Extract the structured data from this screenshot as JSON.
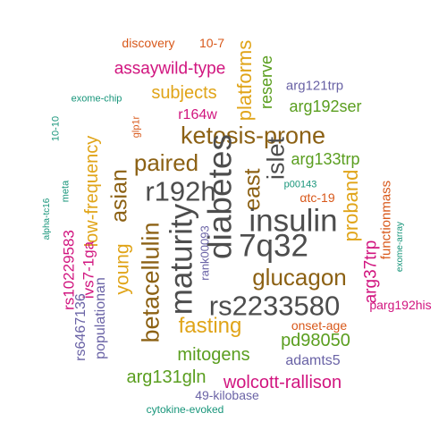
{
  "colors": {
    "gray": "#4d4d4d",
    "brown": "#8c6114",
    "gold": "#e0a418",
    "green": "#5a9e1f",
    "magenta": "#d1157f",
    "purple": "#6a63a6",
    "orange": "#d8581a",
    "teal": "#17957a"
  },
  "words": [
    {
      "text": "discovery",
      "color": "orange"
    },
    {
      "text": "10-7",
      "color": "orange"
    },
    {
      "text": "assaywild-type",
      "color": "magenta"
    },
    {
      "text": "exome-chip",
      "color": "teal"
    },
    {
      "text": "subjects",
      "color": "gold"
    },
    {
      "text": "platforms",
      "color": "gold"
    },
    {
      "text": "reserve",
      "color": "green"
    },
    {
      "text": "arg121trp",
      "color": "purple"
    },
    {
      "text": "arg192ser",
      "color": "green"
    },
    {
      "text": "r164w",
      "color": "magenta"
    },
    {
      "text": "glp1r",
      "color": "orange"
    },
    {
      "text": "ketosis-prone",
      "color": "brown"
    },
    {
      "text": "10-10",
      "color": "teal"
    },
    {
      "text": "meta",
      "color": "teal"
    },
    {
      "text": "paired",
      "color": "brown"
    },
    {
      "text": "islet",
      "color": "gray"
    },
    {
      "text": "arg133trp",
      "color": "green"
    },
    {
      "text": "r192h",
      "color": "gray"
    },
    {
      "text": "east",
      "color": "brown"
    },
    {
      "text": "p00143",
      "color": "teal"
    },
    {
      "text": "αtc-19",
      "color": "orange"
    },
    {
      "text": "alpha-tc16",
      "color": "teal"
    },
    {
      "text": "low-frequency",
      "color": "gold"
    },
    {
      "text": "asian",
      "color": "brown"
    },
    {
      "text": "diabetes",
      "color": "gray"
    },
    {
      "text": "insulin",
      "color": "gray"
    },
    {
      "text": "proband",
      "color": "gold"
    },
    {
      "text": "functionmass",
      "color": "orange"
    },
    {
      "text": "exome-array",
      "color": "teal"
    },
    {
      "text": "rs10229583",
      "color": "magenta"
    },
    {
      "text": "ivs7-1ga",
      "color": "magenta"
    },
    {
      "text": "betacellulin",
      "color": "brown"
    },
    {
      "text": "maturity",
      "color": "gray"
    },
    {
      "text": "rank00093",
      "color": "purple"
    },
    {
      "text": "7q32",
      "color": "gray"
    },
    {
      "text": "young",
      "color": "gold"
    },
    {
      "text": "rs6467136",
      "color": "purple"
    },
    {
      "text": "populationan",
      "color": "purple"
    },
    {
      "text": "glucagon",
      "color": "brown"
    },
    {
      "text": "arg37trp",
      "color": "magenta"
    },
    {
      "text": "rs2233580",
      "color": "gray"
    },
    {
      "text": "parg192his",
      "color": "magenta"
    },
    {
      "text": "fasting",
      "color": "gold"
    },
    {
      "text": "onset-age",
      "color": "orange"
    },
    {
      "text": "pd98050",
      "color": "green"
    },
    {
      "text": "mitogens",
      "color": "green"
    },
    {
      "text": "adamts5",
      "color": "purple"
    },
    {
      "text": "arg131gln",
      "color": "green"
    },
    {
      "text": "wolcott-rallison",
      "color": "magenta"
    },
    {
      "text": "49-kilobase",
      "color": "purple"
    },
    {
      "text": "cytokine-evoked",
      "color": "teal"
    }
  ]
}
